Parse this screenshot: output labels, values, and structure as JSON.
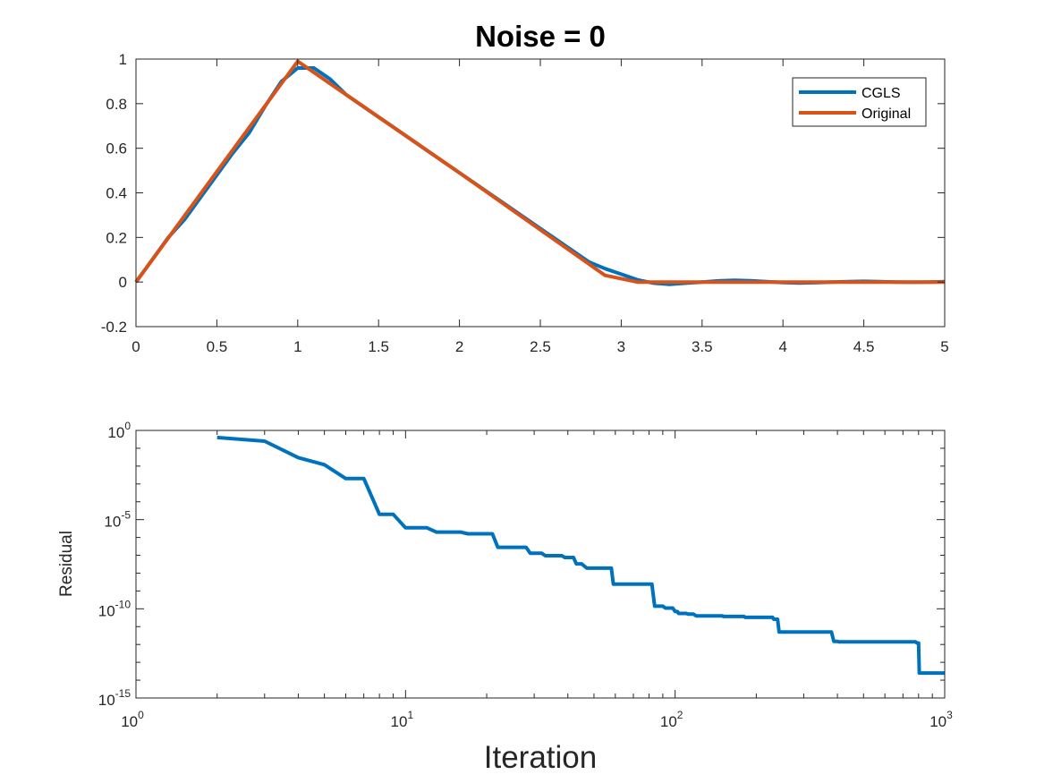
{
  "chart_data": [
    {
      "type": "line",
      "title": "Noise = 0",
      "xlabel": "",
      "ylabel": "",
      "xlim": [
        0,
        5
      ],
      "ylim": [
        -0.2,
        1
      ],
      "xticks": [
        0,
        0.5,
        1,
        1.5,
        2,
        2.5,
        3,
        3.5,
        4,
        4.5,
        5
      ],
      "xtick_labels": [
        "0",
        "0.5",
        "1",
        "1.5",
        "2",
        "2.5",
        "3",
        "3.5",
        "4",
        "4.5",
        "5"
      ],
      "yticks": [
        -0.2,
        0,
        0.2,
        0.4,
        0.6,
        0.8,
        1
      ],
      "ytick_labels": [
        "-0.2",
        "0",
        "0.2",
        "0.4",
        "0.6",
        "0.8",
        "1"
      ],
      "grid": false,
      "legend": "top-right",
      "series": [
        {
          "name": "CGLS",
          "color": "#0072BD",
          "x": [
            0,
            0.1,
            0.2,
            0.3,
            0.4,
            0.5,
            0.6,
            0.7,
            0.8,
            0.9,
            1.0,
            1.1,
            1.2,
            1.3,
            1.4,
            1.5,
            1.6,
            1.7,
            1.8,
            1.9,
            2.0,
            2.1,
            2.2,
            2.3,
            2.4,
            2.5,
            2.6,
            2.7,
            2.8,
            2.9,
            3.0,
            3.1,
            3.2,
            3.3,
            3.4,
            3.5,
            3.6,
            3.7,
            3.8,
            3.9,
            4.0,
            4.1,
            4.2,
            4.3,
            4.4,
            4.5,
            4.6,
            4.7,
            4.8,
            4.9,
            5.0
          ],
          "y": [
            0.0,
            0.1,
            0.2,
            0.28,
            0.38,
            0.48,
            0.58,
            0.67,
            0.79,
            0.9,
            0.96,
            0.96,
            0.91,
            0.84,
            0.79,
            0.74,
            0.69,
            0.64,
            0.59,
            0.54,
            0.49,
            0.44,
            0.39,
            0.34,
            0.29,
            0.24,
            0.19,
            0.14,
            0.09,
            0.06,
            0.035,
            0.01,
            -0.005,
            -0.01,
            -0.005,
            0.0,
            0.005,
            0.008,
            0.006,
            0.002,
            -0.002,
            -0.004,
            -0.003,
            0.0,
            0.002,
            0.003,
            0.002,
            0.0,
            -0.001,
            0.0,
            0.002
          ]
        },
        {
          "name": "Original",
          "color": "#D95319",
          "x": [
            0,
            1,
            2,
            2.9,
            3.1,
            5
          ],
          "y": [
            0,
            0.99,
            0.49,
            0.03,
            0.0,
            0.0
          ]
        }
      ]
    },
    {
      "type": "line",
      "title": "",
      "xlabel": "Iteration",
      "ylabel": "Residual",
      "xscale": "log",
      "yscale": "log",
      "xlim": [
        1,
        1000
      ],
      "ylim": [
        1e-15,
        1
      ],
      "xtick_exponents": [
        "0",
        "1",
        "2",
        "3"
      ],
      "ytick_exponents": [
        "0",
        "-5",
        "-10",
        "-15"
      ],
      "tick_base": "10",
      "grid": false,
      "series": [
        {
          "name": "",
          "color": "#0072BD",
          "x": [
            2,
            3,
            4,
            5,
            6,
            7,
            8,
            9,
            10,
            12,
            13,
            16,
            17,
            21,
            22,
            28,
            29,
            32,
            33,
            38,
            39,
            42,
            43,
            45,
            47,
            58,
            59,
            82,
            84,
            90,
            92,
            98,
            100,
            102,
            103,
            110,
            112,
            117,
            120,
            150,
            151,
            180,
            182,
            230,
            232,
            240,
            243,
            380,
            388,
            400,
            405,
            500,
            600,
            780,
            790,
            800,
            805,
            1000
          ],
          "y": [
            0.4,
            0.25,
            0.03,
            0.012,
            0.002,
            0.002,
            2e-05,
            2e-05,
            3.5e-06,
            3.5e-06,
            2e-06,
            2e-06,
            1.6e-06,
            1.6e-06,
            2.8e-07,
            2.8e-07,
            1.3e-07,
            1.3e-07,
            9.5e-08,
            9.5e-08,
            7.5e-08,
            7.5e-08,
            3.3e-08,
            3.3e-08,
            1.9e-08,
            1.9e-08,
            2.4e-09,
            2.4e-09,
            1.4e-10,
            1.4e-10,
            1.1e-10,
            1.1e-10,
            7e-11,
            7e-11,
            5.5e-11,
            5.5e-11,
            5e-11,
            5e-11,
            4e-11,
            4e-11,
            3.7e-11,
            3.7e-11,
            3.3e-11,
            3.3e-11,
            2.6e-11,
            2.6e-11,
            5e-12,
            5e-12,
            1.5e-12,
            1.5e-12,
            1.4e-12,
            1.4e-12,
            1.4e-12,
            1.4e-12,
            1.2e-12,
            1.2e-12,
            2.5e-14,
            2.5e-14
          ]
        }
      ]
    }
  ]
}
